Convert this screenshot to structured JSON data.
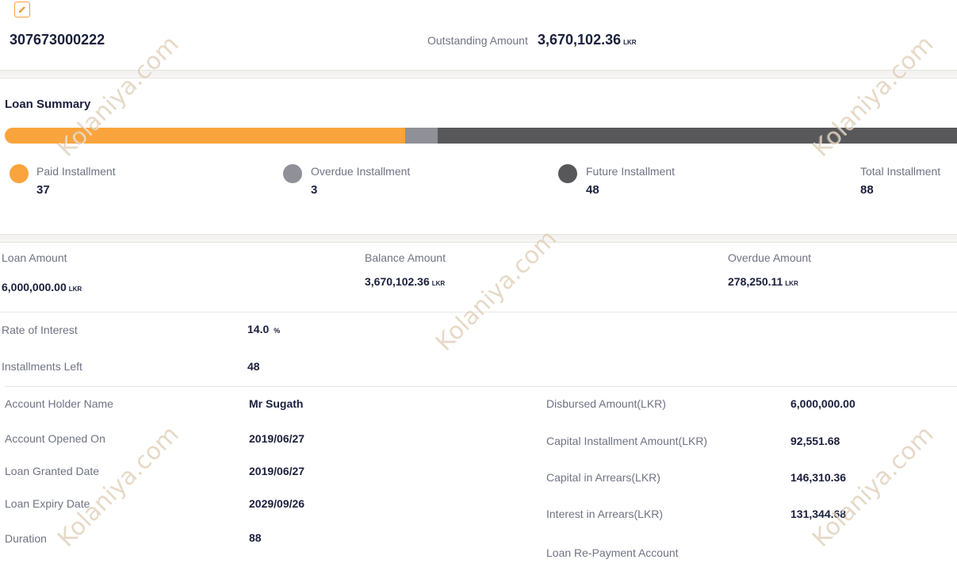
{
  "header": {
    "account_number": "307673000222",
    "outstanding_label": "Outstanding Amount",
    "outstanding_value": "3,670,102.36",
    "currency": "LKR"
  },
  "summary": {
    "title": "Loan Summary",
    "bar": {
      "paid": 37,
      "overdue": 3,
      "future": 48,
      "total": 88
    },
    "colors": {
      "paid": "#f9a43c",
      "overdue": "#909098",
      "future": "#58585a"
    },
    "legend": [
      {
        "label": "Paid Installment",
        "value": "37"
      },
      {
        "label": "Overdue Installment",
        "value": "3"
      },
      {
        "label": "Future Installment",
        "value": "48"
      },
      {
        "label": "Total Installment",
        "value": "88"
      }
    ]
  },
  "amounts": {
    "loan_label": "Loan Amount",
    "loan_value": "6,000,000.00",
    "balance_label": "Balance Amount",
    "balance_value": "3,670,102.36",
    "overdue_label": "Overdue Amount",
    "overdue_value": "278,250.11",
    "currency": "LKR"
  },
  "rates": {
    "interest_label": "Rate of Interest",
    "interest_value": "14.0",
    "interest_unit": "%",
    "left_label": "Installments Left",
    "left_value": "48"
  },
  "details_left": [
    {
      "label": "Account Holder Name",
      "value": "Mr Sugath"
    },
    {
      "label": "Account Opened On",
      "value": "2019/06/27"
    },
    {
      "label": "Loan Granted Date",
      "value": "2019/06/27"
    },
    {
      "label": "Loan Expiry Date",
      "value": "2029/09/26"
    },
    {
      "label": "Duration",
      "value": "88"
    }
  ],
  "details_right": [
    {
      "label": "Disbursed Amount(LKR)",
      "value": "6,000,000.00"
    },
    {
      "label": "Capital Installment Amount(LKR)",
      "value": "92,551.68"
    },
    {
      "label": "Capital in Arrears(LKR)",
      "value": "146,310.36"
    },
    {
      "label": "Interest in Arrears(LKR)",
      "value": "131,344.68"
    },
    {
      "label": "Loan Re-Payment Account",
      "value": ""
    }
  ],
  "watermark": "Kolaniya.com"
}
